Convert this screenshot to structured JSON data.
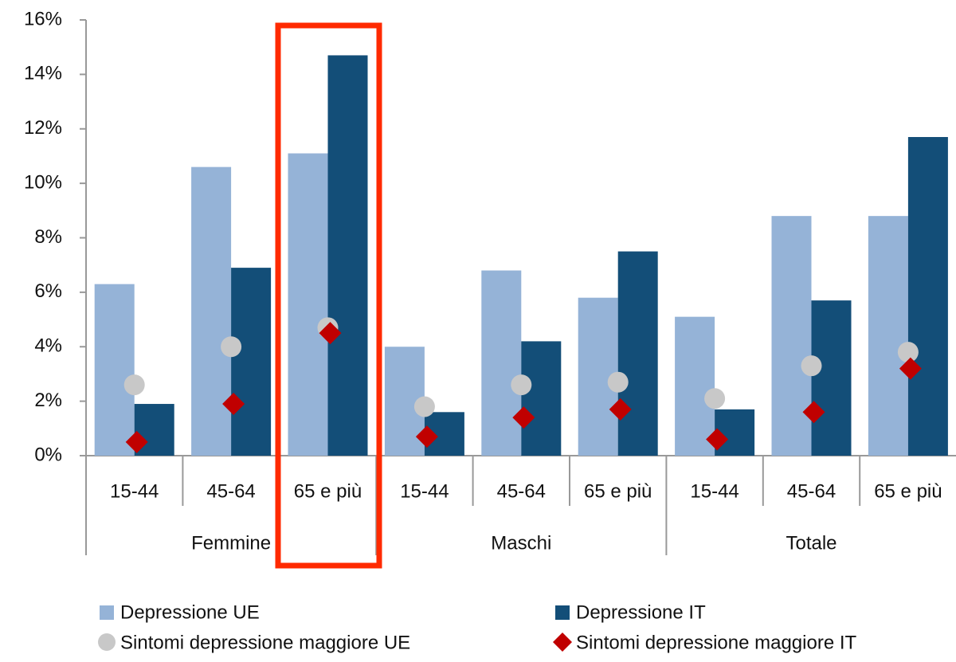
{
  "chart_data": {
    "type": "bar",
    "categories": [
      "15-44",
      "45-64",
      "65 e più",
      "15-44",
      "45-64",
      "65 e più",
      "15-44",
      "45-64",
      "65 e più"
    ],
    "groups": [
      "Femmine",
      "Maschi",
      "Totale"
    ],
    "series": [
      {
        "name": "Depressione UE",
        "color": "#95b3d7",
        "values": [
          6.3,
          10.6,
          11.1,
          4.0,
          6.8,
          5.8,
          5.1,
          8.8,
          8.8
        ]
      },
      {
        "name": "Depressione IT",
        "color": "#134e78",
        "values": [
          1.9,
          6.9,
          14.7,
          1.6,
          4.2,
          7.5,
          1.7,
          5.7,
          11.7
        ]
      },
      {
        "name": "Sintomi depressione maggiore UE",
        "color": "#c8c8c8",
        "marker": "circle",
        "values": [
          2.6,
          4.0,
          4.7,
          1.8,
          2.6,
          2.7,
          2.1,
          3.3,
          3.8
        ]
      },
      {
        "name": "Sintomi depressione maggiore IT",
        "color": "#c00000",
        "marker": "diamond",
        "values": [
          0.5,
          1.9,
          4.5,
          0.7,
          1.4,
          1.7,
          0.6,
          1.6,
          3.2
        ]
      }
    ],
    "ylim": [
      0,
      16
    ],
    "yticks": [
      {
        "value": 0,
        "label": "0%"
      },
      {
        "value": 2,
        "label": "2%"
      },
      {
        "value": 4,
        "label": "4%"
      },
      {
        "value": 6,
        "label": "6%"
      },
      {
        "value": 8,
        "label": "8%"
      },
      {
        "value": 10,
        "label": "10%"
      },
      {
        "value": 12,
        "label": "12%"
      },
      {
        "value": 14,
        "label": "14%"
      },
      {
        "value": 16,
        "label": "16%"
      }
    ]
  }
}
